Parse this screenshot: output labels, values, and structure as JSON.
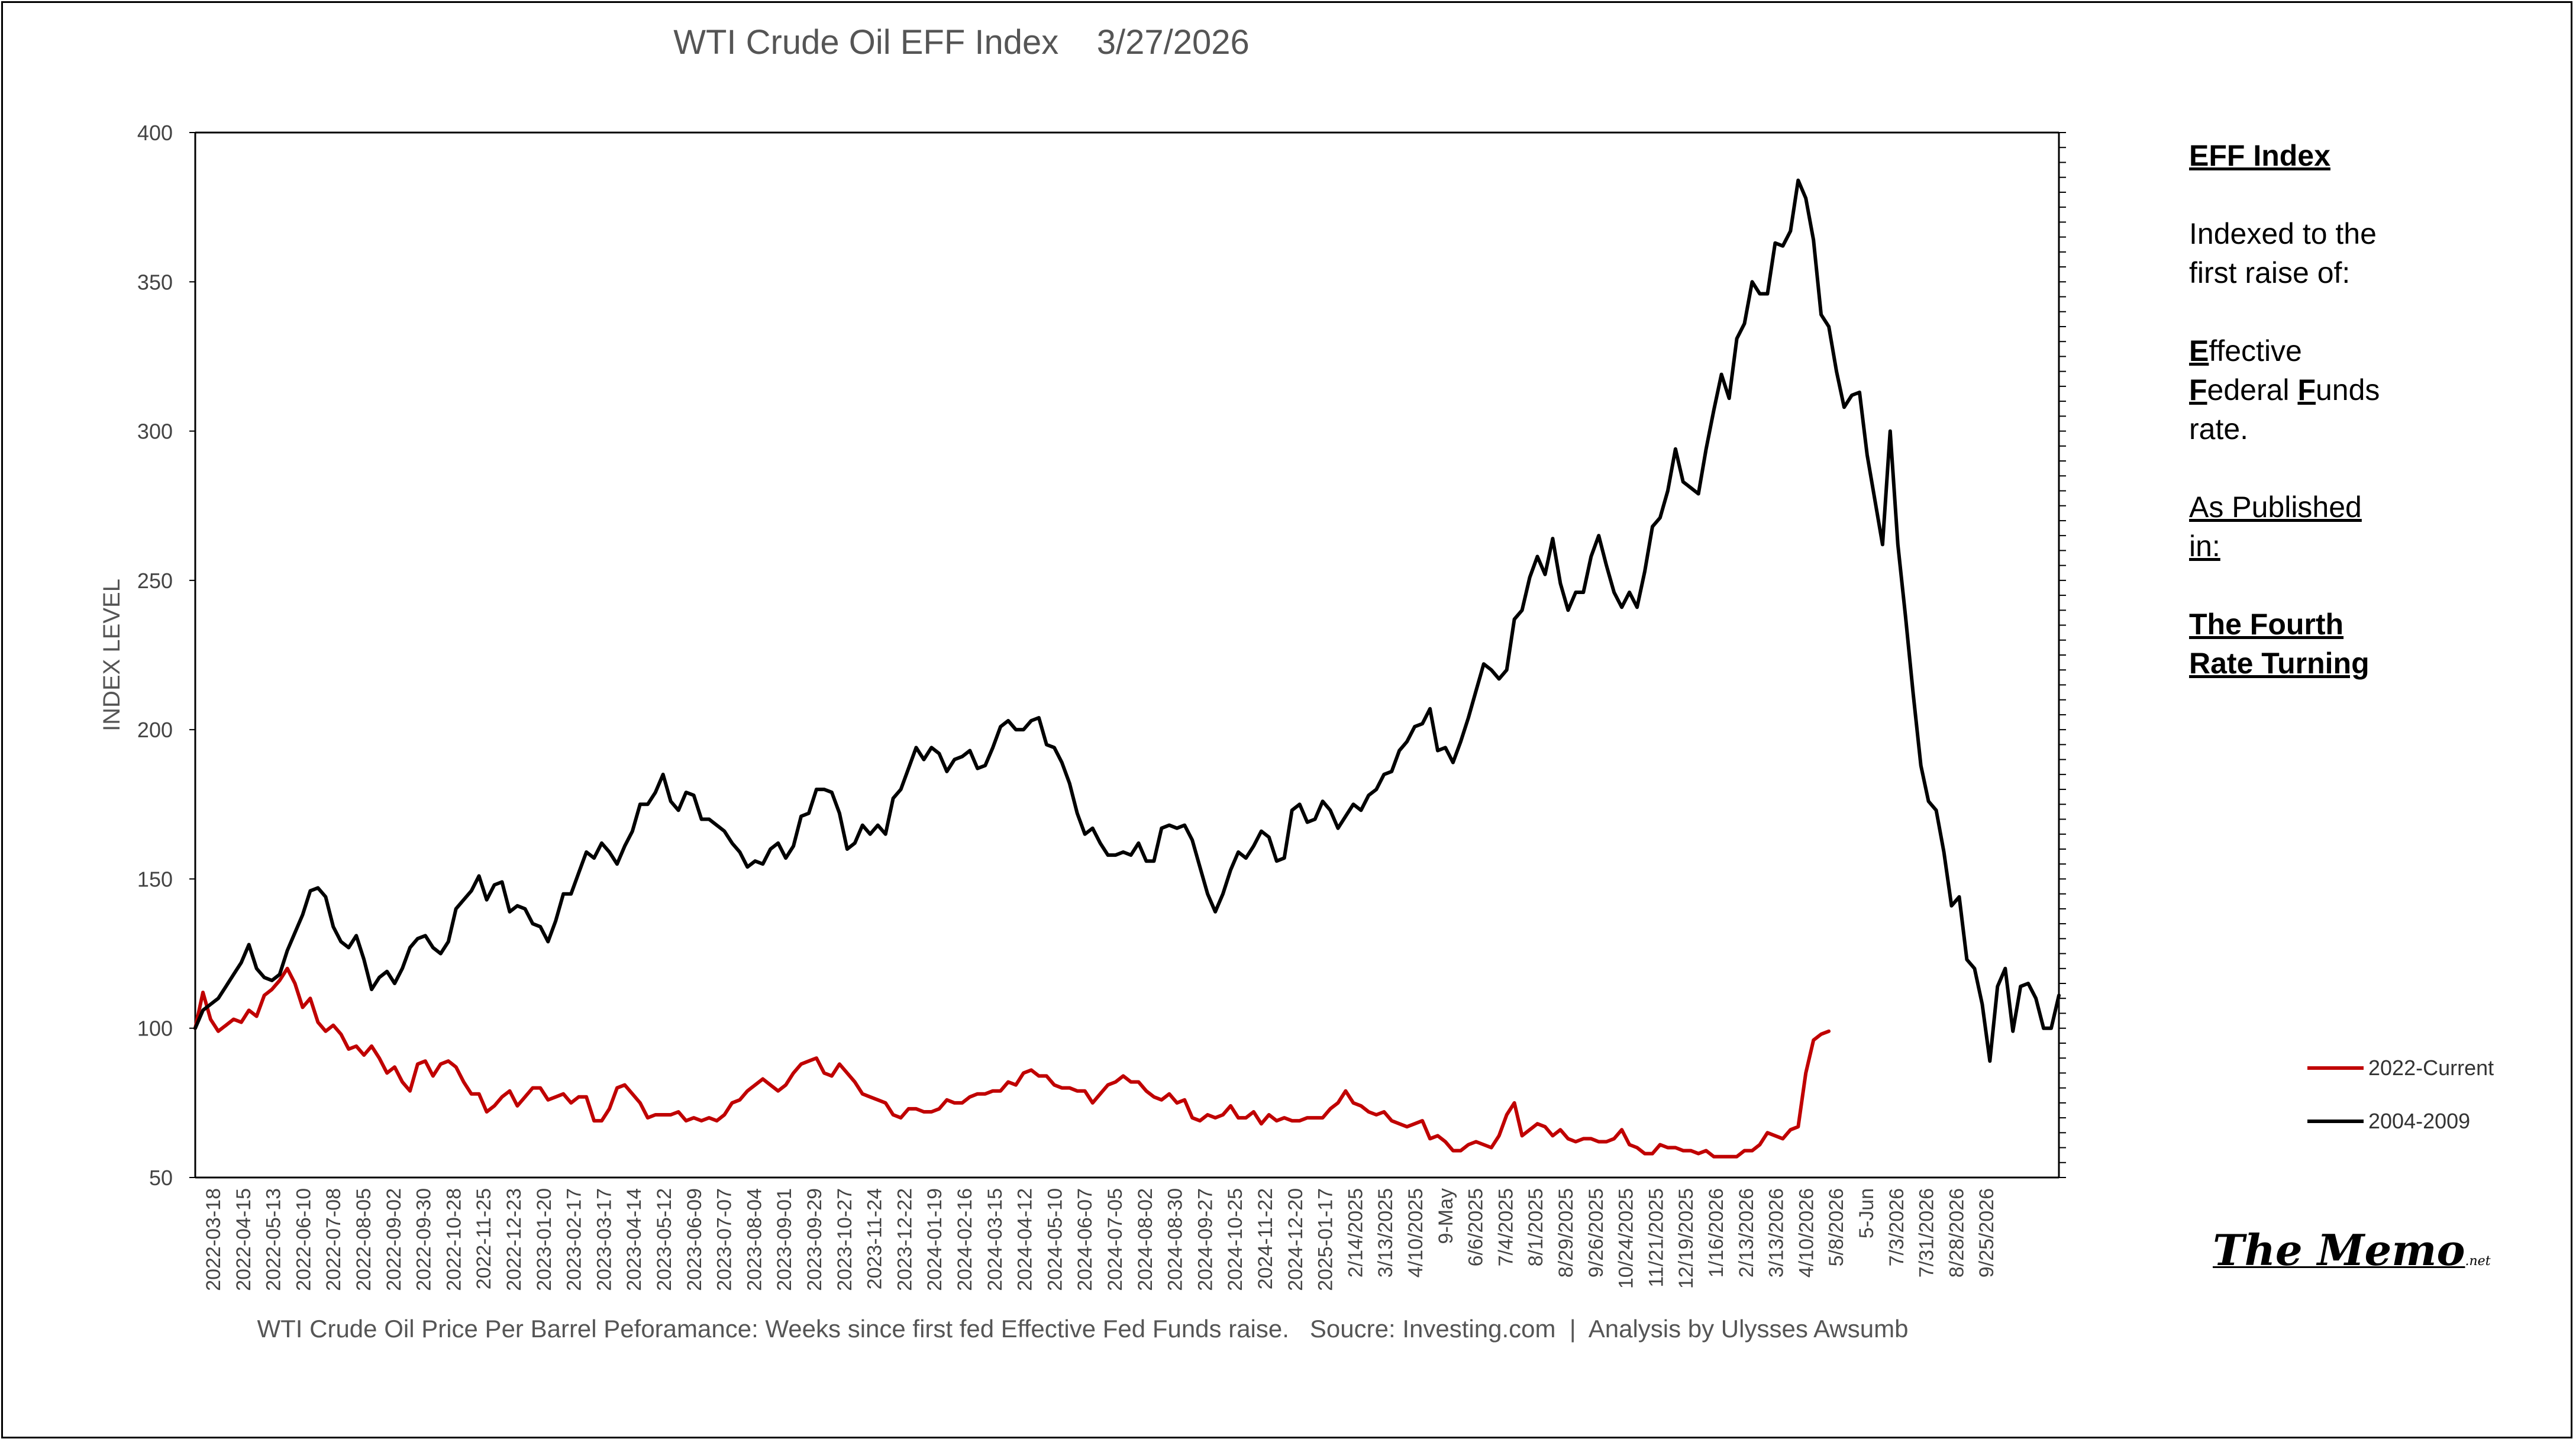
{
  "chart_data": {
    "type": "line",
    "title": "WTI Crude Oil EFF Index    3/27/2026",
    "ylabel": "INDEX LEVEL",
    "caption": "WTI Crude Oil Price Per Barrel Peforamance: Weeks since first fed Effective Fed Funds raise.   Soucre: Investing.com  |  Analysis by Ulysses Awsumb",
    "ylim": [
      50,
      400
    ],
    "yticks": [
      50,
      100,
      150,
      200,
      250,
      300,
      350,
      400
    ],
    "grid": false,
    "legend_position": "right",
    "x_tick_labels": [
      "2022-03-18",
      "2022-04-15",
      "2022-05-13",
      "2022-06-10",
      "2022-07-08",
      "2022-08-05",
      "2022-09-02",
      "2022-09-30",
      "2022-10-28",
      "2022-11-25",
      "2022-12-23",
      "2023-01-20",
      "2023-02-17",
      "2023-03-17",
      "2023-04-14",
      "2023-05-12",
      "2023-06-09",
      "2023-07-07",
      "2023-08-04",
      "2023-09-01",
      "2023-09-29",
      "2023-10-27",
      "2023-11-24",
      "2023-12-22",
      "2024-01-19",
      "2024-02-16",
      "2024-03-15",
      "2024-04-12",
      "2024-05-10",
      "2024-06-07",
      "2024-07-05",
      "2024-08-02",
      "2024-08-30",
      "2024-09-27",
      "2024-10-25",
      "2024-11-22",
      "2024-12-20",
      "2025-01-17",
      "2/14/2025",
      "3/13/2025",
      "4/10/2025",
      "9-May",
      "6/6/2025",
      "7/4/2025",
      "8/1/2025",
      "8/29/2025",
      "9/26/2025",
      "10/24/2025",
      "11/21/2025",
      "12/19/2025",
      "1/16/2026",
      "2/13/2026",
      "3/13/2026",
      "4/10/2026",
      "5/8/2026",
      "5-Jun",
      "7/3/2026",
      "7/31/2026",
      "8/28/2026",
      "9/25/2026"
    ],
    "series": [
      {
        "name": "2022-Current",
        "color": "#C00000",
        "values": [
          100,
          112,
          103,
          99,
          101,
          103,
          102,
          106,
          104,
          111,
          113,
          116,
          120,
          115,
          107,
          110,
          102,
          99,
          101,
          98,
          93,
          94,
          91,
          94,
          90,
          85,
          87,
          82,
          79,
          88,
          89,
          84,
          88,
          89,
          87,
          82,
          78,
          78,
          72,
          74,
          77,
          79,
          74,
          77,
          80,
          80,
          76,
          77,
          78,
          75,
          77,
          77,
          69,
          69,
          73,
          80,
          81,
          78,
          75,
          70,
          71,
          71,
          71,
          72,
          69,
          70,
          69,
          70,
          69,
          71,
          75,
          76,
          79,
          81,
          83,
          81,
          79,
          81,
          85,
          88,
          89,
          90,
          85,
          84,
          88,
          85,
          82,
          78,
          77,
          76,
          75,
          71,
          70,
          73,
          73,
          72,
          72,
          73,
          76,
          75,
          75,
          77,
          78,
          78,
          79,
          79,
          82,
          81,
          85,
          86,
          84,
          84,
          81,
          80,
          80,
          79,
          79,
          75,
          78,
          81,
          82,
          84,
          82,
          82,
          79,
          77,
          76,
          78,
          75,
          76,
          70,
          69,
          71,
          70,
          71,
          74,
          70,
          70,
          72,
          68,
          71,
          69,
          70,
          69,
          69,
          70,
          70,
          70,
          73,
          75,
          79,
          75,
          74,
          72,
          71,
          72,
          69,
          68,
          67,
          68,
          69,
          63,
          64,
          62,
          59,
          59,
          61,
          62,
          61,
          60,
          64,
          71,
          75,
          64,
          66,
          68,
          67,
          64,
          66,
          63,
          62,
          63,
          63,
          62,
          62,
          63,
          66,
          61,
          60,
          58,
          58,
          61,
          60,
          60,
          59,
          59,
          58,
          59,
          57,
          57,
          57,
          57,
          59,
          59,
          61,
          65,
          64,
          63,
          66,
          67,
          85,
          96,
          98,
          99
        ]
      },
      {
        "name": "2004-2009",
        "color": "#000000",
        "values": [
          100,
          106,
          108,
          110,
          114,
          118,
          122,
          128,
          120,
          117,
          116,
          118,
          126,
          132,
          138,
          146,
          147,
          144,
          134,
          129,
          127,
          131,
          123,
          113,
          117,
          119,
          115,
          120,
          127,
          130,
          131,
          127,
          125,
          129,
          140,
          143,
          146,
          151,
          143,
          148,
          149,
          139,
          141,
          140,
          135,
          134,
          129,
          136,
          145,
          145,
          152,
          159,
          157,
          162,
          159,
          155,
          161,
          166,
          175,
          175,
          179,
          185,
          176,
          173,
          179,
          178,
          170,
          170,
          168,
          166,
          162,
          159,
          154,
          156,
          155,
          160,
          162,
          157,
          161,
          171,
          172,
          180,
          180,
          179,
          172,
          160,
          162,
          168,
          165,
          168,
          165,
          177,
          180,
          187,
          194,
          190,
          194,
          192,
          186,
          190,
          191,
          193,
          187,
          188,
          194,
          201,
          203,
          200,
          200,
          203,
          204,
          195,
          194,
          189,
          182,
          172,
          165,
          167,
          162,
          158,
          158,
          159,
          158,
          162,
          156,
          156,
          167,
          168,
          167,
          168,
          163,
          154,
          145,
          139,
          145,
          153,
          159,
          157,
          161,
          166,
          164,
          156,
          157,
          173,
          175,
          169,
          170,
          176,
          173,
          167,
          171,
          175,
          173,
          178,
          180,
          185,
          186,
          193,
          196,
          201,
          202,
          207,
          193,
          194,
          189,
          196,
          204,
          213,
          222,
          220,
          217,
          220,
          237,
          240,
          251,
          258,
          252,
          264,
          249,
          240,
          246,
          246,
          258,
          265,
          255,
          246,
          241,
          246,
          241,
          253,
          268,
          271,
          280,
          294,
          283,
          281,
          279,
          294,
          307,
          319,
          311,
          331,
          336,
          350,
          346,
          346,
          363,
          362,
          367,
          384,
          378,
          364,
          339,
          335,
          320,
          308,
          312,
          313,
          292,
          277,
          262,
          300,
          262,
          238,
          212,
          188,
          176,
          173,
          159,
          141,
          144,
          123,
          120,
          108,
          89,
          114,
          120,
          99,
          114,
          115,
          110,
          100,
          100,
          111
        ]
      }
    ]
  },
  "sidebar": {
    "heading": "EFF Index",
    "line1": "Indexed to the",
    "line2": "first raise of:",
    "eff_l1_cap": "E",
    "eff_l1_rest": "ffective",
    "eff_l2_cap1": "F",
    "eff_l2_mid": "ederal ",
    "eff_l2_cap2": "F",
    "eff_l2_rest": "unds",
    "eff_l3": "rate.",
    "pub_l1": "As Published",
    "pub_l2": "in:",
    "pub_title_l1": "The Fourth",
    "pub_title_l2": "Rate Turning"
  },
  "logo": {
    "main": "The Memo",
    "suffix": ".net"
  }
}
